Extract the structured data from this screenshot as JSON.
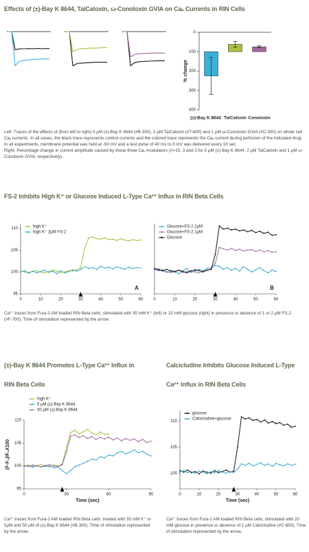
{
  "sections": [
    {
      "title": "Effects of (±)-Bay K 8644, TaiCatoxin, ω-Conotoxin GVIA on Caᵥ Currents in RIN Cells",
      "caption": [
        "Left: Traces of the effects of (from left to right) 5 µM (±)-Bay K 8644 (#B-350), 2 µM TaiCatoxin (#T-800) and 1 µM ω-Conotoxin GVIA (#C-300) on whole cell Caᵥ currents. In all cases, the black trace represents control currents and the colored trace represents the Caᵥ current during perfusion of the indicated drug. In all experiments, membrane potential was held at -50 mV and a test pulse of 40 ms to 0 mV was delivered every 10 sec.",
        "Right: Percentage change in current amplitude caused by these three Caᵥ modulators (n=10, 3 and 2 for 5 µM (±)-Bay K 8644, 2 µM TaiCatoxin and 1 µM ω-Conotoxin GVIA, respectively)."
      ]
    },
    {
      "title": "FS-2 Inhibits High K⁺ or Glucose Induced L-Type Ca²⁺ Influx in RIN Beta Cells",
      "caption": [
        "Ca²⁺ traces from Fura-2 AM loaded RIN Beta cells; stimulated with 35 mM K⁺ (left) or 20 mM glucose (right) in presence or absence of 1 or 2 µM FS-2 (#F-700). Time of stimulation represented by the arrow."
      ]
    },
    {
      "title": "(±)-Bay K 8644 Promotes L-Type Ca²⁺ Influx in RIN Beta Cells",
      "caption": [
        "Ca²⁺ traces from Fura-2 AM loaded RIN Beta cells; treated with 35 mM K⁺ or 5µM and 50 µM of (±)-Bay K 8644 (#B-350). Time of stimulation represented by the arrow."
      ]
    },
    {
      "title": "Calcicludine Inhibits Glucose Induced L-Type Ca²⁺ Influx in RIN Beta Cells",
      "caption": [
        "Ca²⁺ traces from Fura-2 AM loaded RIN Beta cells; stimulated with 20 mM glucose in presence or absence of 1 µM Calcicludine (#C-650). Time of stimulation represented by the arrow."
      ]
    }
  ],
  "chart_data": [
    {
      "type": "line",
      "x": [
        0,
        1,
        2,
        3,
        4,
        5,
        6,
        7,
        8,
        9,
        10,
        11,
        12
      ],
      "series": [
        {
          "color": "#111111",
          "values": [
            0,
            0,
            -0.9,
            -0.86,
            -0.85,
            -0.85,
            -0.84,
            -0.85,
            -0.84,
            -0.84,
            -0.85,
            -0.84,
            -0.84
          ]
        },
        {
          "color": "#3ab0d8",
          "values": [
            0,
            0,
            -1.7,
            -1.5,
            -1.45,
            -1.42,
            -1.4,
            -1.38,
            -1.37,
            -1.36,
            -1.35,
            -1.35,
            -1.35
          ]
        }
      ]
    },
    {
      "type": "line",
      "x": [
        0,
        1,
        2,
        3,
        4,
        5,
        6,
        7,
        8,
        9,
        10,
        11,
        12
      ],
      "series": [
        {
          "color": "#111111",
          "values": [
            0,
            0,
            -0.85,
            -0.8,
            -0.78,
            -0.78,
            -0.77,
            -0.77,
            -0.76,
            -0.76,
            -0.76,
            -0.76,
            -0.76
          ]
        },
        {
          "color": "#a8c040",
          "values": [
            0,
            0,
            -0.5,
            -0.45,
            -0.43,
            -0.42,
            -0.42,
            -0.41,
            -0.41,
            -0.41,
            -0.4,
            -0.4,
            -0.4
          ]
        }
      ]
    },
    {
      "type": "line",
      "x": [
        0,
        1,
        2,
        3,
        4,
        5,
        6,
        7,
        8,
        9,
        10,
        11,
        12
      ],
      "series": [
        {
          "color": "#111111",
          "values": [
            0,
            0,
            -1.15,
            -1.05,
            -1.02,
            -1.0,
            -1.0,
            -0.99,
            -0.99,
            -0.98,
            -0.98,
            -0.98,
            -0.98
          ]
        },
        {
          "color": "#a06aa0",
          "values": [
            0,
            0,
            -0.85,
            -0.78,
            -0.75,
            -0.74,
            -0.73,
            -0.73,
            -0.72,
            -0.72,
            -0.72,
            -0.72,
            -0.72
          ]
        }
      ]
    },
    {
      "type": "bar",
      "ylabel": "% change",
      "categories": [
        "(±)-Bay K 8644",
        "TaiCatoxin",
        "Conotoxin"
      ],
      "values": [
        225,
        62,
        75
      ],
      "errors": [
        95,
        15,
        5
      ],
      "colors": [
        "#3ab0d8",
        "#a8c040",
        "#a06aa0"
      ],
      "ylim": [
        0,
        400
      ],
      "yticks": [
        0,
        100,
        200,
        300,
        400
      ],
      "invert_y": true,
      "baseline": 100
    },
    {
      "type": "line",
      "panel_label": "A",
      "arrow_x": 30,
      "xlim": [
        0,
        60
      ],
      "xticks": [
        0,
        10,
        20,
        30,
        40,
        50,
        60
      ],
      "ylim": [
        95,
        111
      ],
      "yticks": [
        95,
        100,
        105,
        110
      ],
      "x": [
        0,
        2,
        4,
        6,
        8,
        10,
        12,
        14,
        16,
        18,
        20,
        22,
        24,
        26,
        28,
        30,
        32,
        34,
        36,
        38,
        40,
        42,
        44,
        46,
        48,
        50,
        52,
        54,
        56,
        58,
        60
      ],
      "series": [
        {
          "name": "high K⁺",
          "color": "#a8c040",
          "values": [
            100.2,
            100,
            99.9,
            100.1,
            100.3,
            100,
            99.8,
            100.1,
            100.4,
            100.2,
            99.9,
            100,
            100.3,
            100.2,
            100.5,
            101,
            105.5,
            107.8,
            108,
            107.6,
            107.5,
            107.8,
            107.4,
            107.5,
            107.2,
            107.6,
            107.3,
            107.1,
            107.4,
            107.2,
            107.3
          ]
        },
        {
          "name": "high K⁺  2µM FS-2",
          "color": "#3aa9c8",
          "values": [
            100,
            100.3,
            99.7,
            100.2,
            99.8,
            100.1,
            100.4,
            99.9,
            100.2,
            99.6,
            100.3,
            99.8,
            100.1,
            100.5,
            100.2,
            100.6,
            101.2,
            100.8,
            101,
            100.6,
            101.3,
            100.9,
            101.1,
            100.7,
            101.2,
            100.9,
            100.6,
            101.1,
            100.8,
            101,
            100.9
          ]
        }
      ]
    },
    {
      "type": "line",
      "panel_label": "B",
      "arrow_x": 30,
      "xlim": [
        0,
        60
      ],
      "xticks": [
        0,
        10,
        20,
        30,
        40,
        50,
        60
      ],
      "ylim": [
        95,
        111
      ],
      "x": [
        0,
        2,
        4,
        6,
        8,
        10,
        12,
        14,
        16,
        18,
        20,
        22,
        24,
        26,
        28,
        30,
        32,
        34,
        36,
        38,
        40,
        42,
        44,
        46,
        48,
        50,
        52,
        54,
        56,
        58,
        60
      ],
      "series": [
        {
          "name": "Glucose+FS-2  2µM",
          "color": "#3aa9c8",
          "values": [
            100.4,
            100.7,
            100.2,
            99.9,
            100.4,
            100.1,
            99.6,
            100.3,
            100.8,
            99.9,
            100.2,
            100.6,
            100.3,
            100.8,
            101,
            101.5,
            101.3,
            100.6,
            101,
            100.4,
            100.8,
            100.2,
            101.2,
            100.6,
            100,
            100.5,
            101,
            100.3,
            99.8,
            100.4,
            100.1
          ]
        },
        {
          "name": "Glucose+FS-2  1µM",
          "color": "#a06aa0",
          "values": [
            100.6,
            100.3,
            100.5,
            100.1,
            99.8,
            100.2,
            100.4,
            99.9,
            100.1,
            100.3,
            100,
            99.8,
            100.2,
            100.4,
            100.7,
            102,
            105.6,
            105.3,
            105,
            105.4,
            104.9,
            105.2,
            104.8,
            105,
            105.1,
            104.7,
            105,
            104.6,
            104.9,
            104.5,
            104.6
          ]
        },
        {
          "name": "Glucose",
          "color": "#111111",
          "values": [
            100.8,
            100.5,
            100.3,
            100.6,
            100.2,
            100,
            100.4,
            100.1,
            99.8,
            100.2,
            100.5,
            100.3,
            100,
            100.4,
            100.6,
            104,
            110.5,
            109.8,
            110,
            109.6,
            109.8,
            109.4,
            109.6,
            109.2,
            109.5,
            109,
            109.3,
            108.8,
            109.1,
            108.4,
            108.5
          ]
        }
      ]
    },
    {
      "type": "line",
      "arrow_x": 27,
      "xlabel": "Time (sec)",
      "ylabel": "(F-F₀)/F₀X100",
      "xlim": [
        0,
        90
      ],
      "xticks": [
        0,
        30,
        60,
        90
      ],
      "ylim": [
        95,
        110
      ],
      "yticks": [
        95,
        100,
        105,
        110
      ],
      "x": [
        0,
        3,
        6,
        9,
        12,
        15,
        18,
        21,
        24,
        27,
        30,
        33,
        36,
        39,
        42,
        45,
        48,
        51,
        54,
        57,
        60,
        63,
        66,
        69,
        72,
        75,
        78,
        81,
        84,
        87,
        90
      ],
      "series": [
        {
          "name": "high K⁺",
          "color": "#a8c040",
          "values": [
            100,
            100.2,
            99.9,
            100.1,
            100.3,
            100,
            99.8,
            100.2,
            100,
            100.4,
            104,
            107.3,
            107.8,
            107,
            107.5,
            108,
            107.2,
            106.8,
            107.4,
            106.9,
            107,
            null,
            null,
            null,
            null,
            null,
            null,
            null,
            null,
            null,
            null
          ]
        },
        {
          "name": "5 µM (±)-Bay K 8644",
          "color": "#3aa9c8",
          "values": [
            99.9,
            100,
            99.7,
            100.1,
            99.8,
            99.9,
            100,
            99.6,
            99.8,
            99,
            98.3,
            99,
            99.8,
            100.2,
            100.6,
            101,
            101.5,
            101.3,
            102,
            101.8,
            102.4,
            102.2,
            102.8,
            103.2,
            102.6,
            103,
            103.5,
            102.9,
            103.2,
            102.6,
            102.2
          ]
        },
        {
          "name": "50 µM (±)-Bay K 8644",
          "color": "#a06aa0",
          "values": [
            100.1,
            99.9,
            100.2,
            100,
            99.8,
            100.1,
            100.3,
            100,
            99.9,
            100.2,
            103,
            106.5,
            106.8,
            106.2,
            106.6,
            106,
            106.4,
            105.8,
            106.2,
            105.9,
            106.3,
            105.7,
            106.1,
            105.5,
            106,
            105.6,
            105.9,
            105.3,
            105.8,
            105.1,
            105.4
          ]
        }
      ]
    },
    {
      "type": "line",
      "arrow_x": 28,
      "xlabel": "Time (sec)",
      "xlim": [
        0,
        60
      ],
      "xticks": [
        0,
        10,
        20,
        30,
        40,
        50,
        60
      ],
      "ylim": [
        97,
        112
      ],
      "yticks": [
        100,
        105,
        110
      ],
      "x": [
        0,
        2,
        4,
        6,
        8,
        10,
        12,
        14,
        16,
        18,
        20,
        22,
        24,
        26,
        28,
        30,
        32,
        34,
        36,
        38,
        40,
        42,
        44,
        46,
        48,
        50,
        52,
        54,
        56,
        58,
        60
      ],
      "series": [
        {
          "name": "glucose",
          "color": "#111111",
          "values": [
            100.5,
            100.2,
            100.6,
            100.1,
            100.3,
            99.9,
            100.4,
            100.2,
            100,
            100.5,
            100.1,
            100.3,
            100.6,
            100.2,
            100.4,
            105,
            110.8,
            110.4,
            110.6,
            110.1,
            110.3,
            109.8,
            110.2,
            109.6,
            109.9,
            109.5,
            109.7,
            109.2,
            109.4,
            108.8,
            109
          ]
        },
        {
          "name": "Calcicludine+glucose",
          "color": "#3aa9c8",
          "values": [
            100.2,
            100.5,
            100.1,
            100.3,
            100,
            100.4,
            100.2,
            99.9,
            100.3,
            100.1,
            100.5,
            100.2,
            100,
            100.3,
            100.1,
            100.8,
            101.8,
            101.5,
            101.9,
            101.4,
            101.7,
            102,
            101.5,
            101.8,
            101.3,
            101.9,
            101.6,
            101.4,
            101.8,
            101.5,
            101.7
          ]
        }
      ]
    }
  ]
}
